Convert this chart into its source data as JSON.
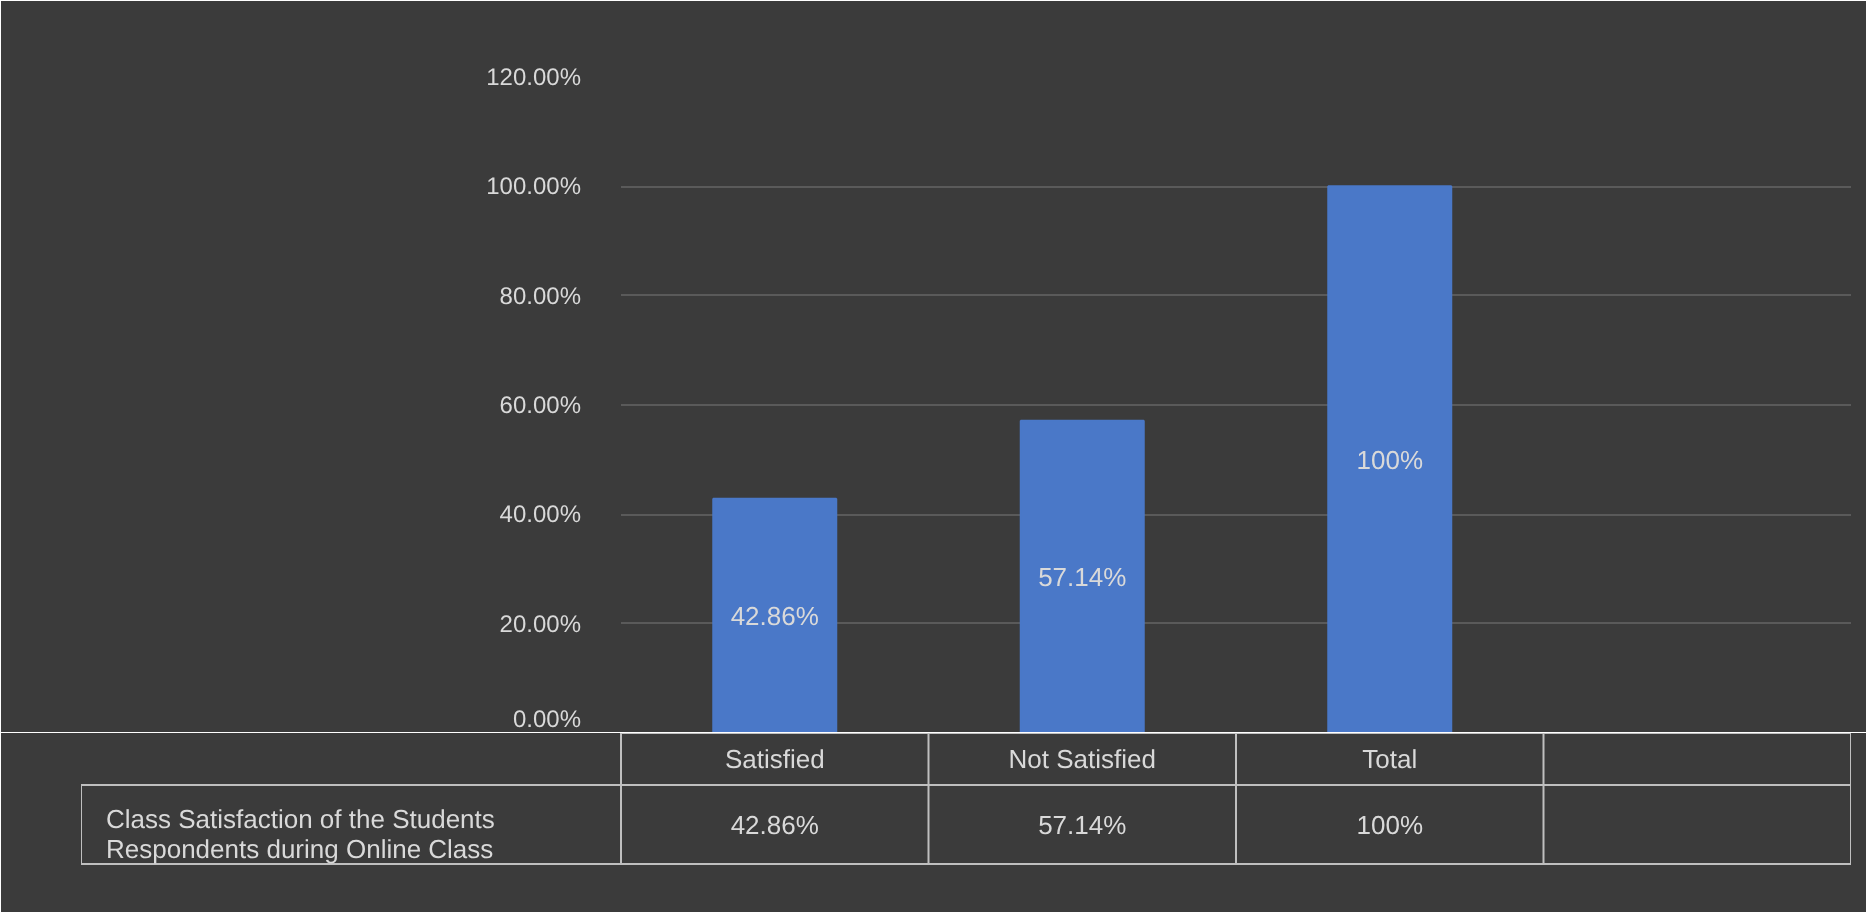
{
  "chart_data": {
    "type": "bar",
    "categories": [
      "Satisfied",
      "Not Satisfied",
      "Total",
      null
    ],
    "series": [
      {
        "name": "Class Satisfaction of the Students\nRespondents during Online Class",
        "color": "#4a78c8",
        "values": [
          42.86,
          57.14,
          100,
          null
        ],
        "value_labels": [
          "42.86%",
          "57.14%",
          "100%",
          null
        ]
      }
    ],
    "ylim": [
      0,
      120
    ],
    "yticks": [
      {
        "value": 0,
        "label": "0.00%"
      },
      {
        "value": 20,
        "label": "20.00%"
      },
      {
        "value": 40,
        "label": "40.00%"
      },
      {
        "value": 60,
        "label": "60.00%"
      },
      {
        "value": 80,
        "label": "80.00%"
      },
      {
        "value": 100,
        "label": "100.00%"
      },
      {
        "value": 120,
        "label": "120.00%"
      }
    ],
    "grid": "y",
    "legend": "bottom"
  }
}
